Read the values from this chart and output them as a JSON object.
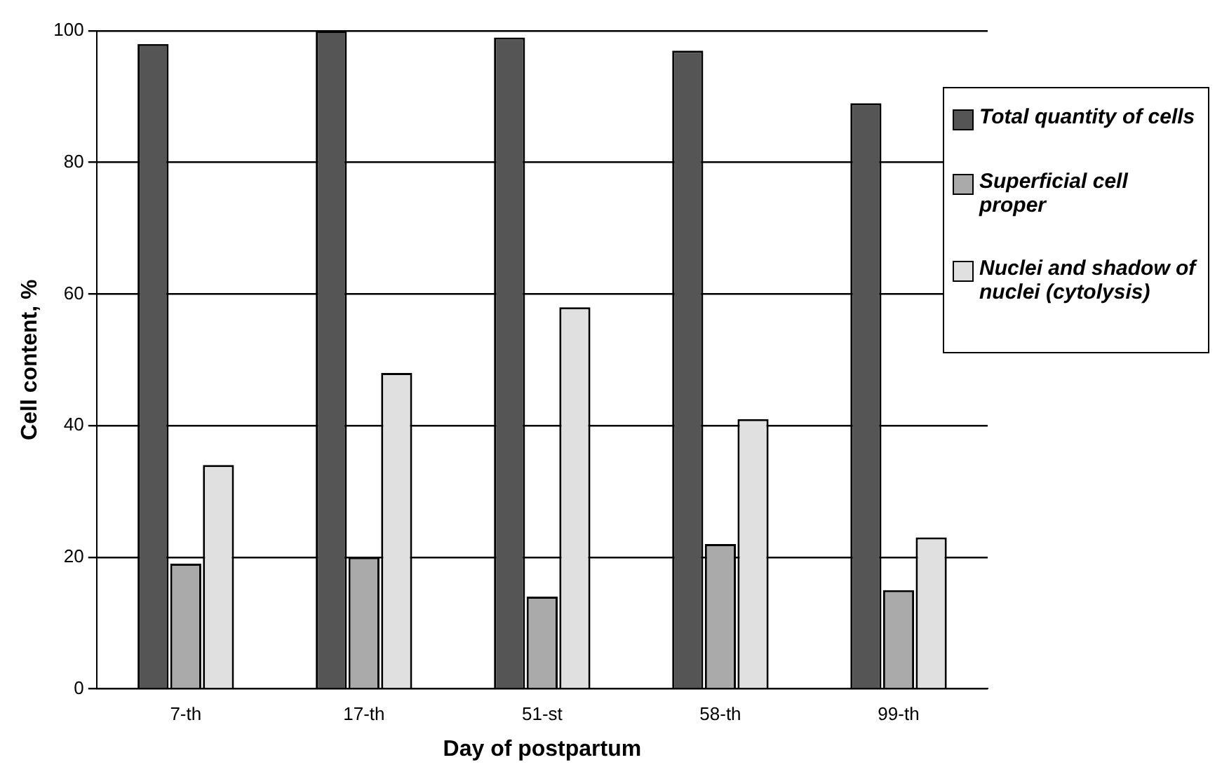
{
  "chart_data": {
    "type": "bar",
    "xlabel": "Day of postpartum",
    "ylabel": "Cell content, %",
    "categories": [
      "7-th",
      "17-th",
      "51-st",
      "58-th",
      "99-th"
    ],
    "series": [
      {
        "name": "Total quantity of cells",
        "color": "#555555",
        "values": [
          98,
          100,
          99,
          97,
          89
        ]
      },
      {
        "name": "Superficial cell proper",
        "color": "#aaaaaa",
        "values": [
          19,
          20,
          14,
          22,
          15
        ]
      },
      {
        "name": "Nuclei and shadow of nuclei (cytolysis)",
        "color": "#e0e0e0",
        "values": [
          34,
          48,
          58,
          41,
          23
        ]
      }
    ],
    "ylim": [
      0,
      100
    ],
    "yticks": [
      0,
      20,
      40,
      60,
      80,
      100
    ],
    "grid": "y",
    "legend": "right"
  }
}
